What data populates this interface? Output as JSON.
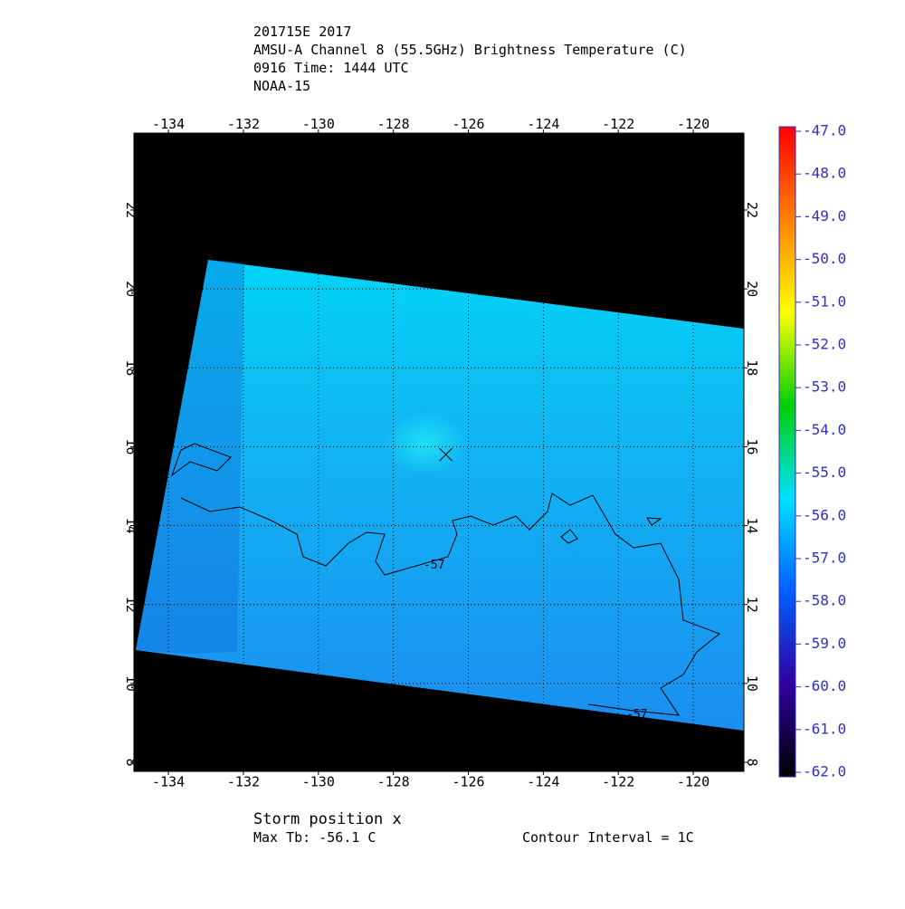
{
  "chart_data": {
    "type": "map",
    "title_lines": [
      "201715E 2017",
      "AMSU-A Channel 8 (55.5GHz) Brightness Temperature (C)",
      "0916 Time: 1444 UTC",
      "NOAA-15"
    ],
    "xlim": [
      -134.92,
      -118.65
    ],
    "ylim": [
      7.77,
      23.95
    ],
    "xticks": [
      -134,
      -132,
      -130,
      -128,
      -126,
      -124,
      -122,
      -120
    ],
    "yticks": [
      8,
      10,
      12,
      14,
      16,
      18,
      20,
      22
    ],
    "grid": true,
    "colorbar": {
      "lim": [
        -47,
        -62
      ],
      "ticks": [
        {
          "value": -47,
          "label": "-47.0"
        },
        {
          "value": -48,
          "label": "-48.0"
        },
        {
          "value": -49,
          "label": "-49.0"
        },
        {
          "value": -50,
          "label": "-50.0"
        },
        {
          "value": -51,
          "label": "-51.0"
        },
        {
          "value": -52,
          "label": "-52.0"
        },
        {
          "value": -53,
          "label": "-53.0"
        },
        {
          "value": -54,
          "label": "-54.0"
        },
        {
          "value": -55,
          "label": "-55.0"
        },
        {
          "value": -56,
          "label": "-56.0"
        },
        {
          "value": -57,
          "label": "-57.0"
        },
        {
          "value": -58,
          "label": "-58.0"
        },
        {
          "value": -59,
          "label": "-59.0"
        },
        {
          "value": -60,
          "label": "-60.0"
        },
        {
          "value": -61,
          "label": "-61.0"
        },
        {
          "value": -62,
          "label": "-62.0"
        }
      ],
      "colors": [
        "#ff0000",
        "#ff8000",
        "#ffff00",
        "#00d000",
        "#00e0ff",
        "#0060ff",
        "#3000a0",
        "#000000"
      ]
    },
    "contour_level": -57,
    "storm_position": {
      "lon": -126.6,
      "lat": 15.8
    },
    "footer": [
      "Storm position x",
      "Max Tb: -56.1    C",
      "Contour Interval = 1C"
    ]
  }
}
